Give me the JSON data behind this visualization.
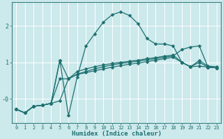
{
  "xlabel": "Humidex (Indice chaleur)",
  "bg_color": "#cce9ec",
  "grid_color": "#ffffff",
  "line_color": "#1e7070",
  "xlim": [
    -0.5,
    23.5
  ],
  "ylim": [
    -0.65,
    2.65
  ],
  "xticks": [
    0,
    1,
    2,
    3,
    4,
    5,
    6,
    7,
    8,
    9,
    10,
    11,
    12,
    13,
    14,
    15,
    16,
    17,
    18,
    19,
    20,
    21,
    22,
    23
  ],
  "yticks": [
    0.0,
    1.0,
    2.0
  ],
  "ytick_labels": [
    "-0",
    "1",
    "2"
  ],
  "line1_x": [
    0,
    1,
    2,
    3,
    4,
    5,
    6,
    7,
    8,
    9,
    10,
    11,
    12,
    13,
    14,
    15,
    16,
    17,
    18,
    19,
    20,
    21,
    22,
    23
  ],
  "line1_y": [
    -0.28,
    -0.38,
    -0.2,
    -0.17,
    -0.12,
    1.05,
    -0.45,
    0.6,
    1.45,
    1.78,
    2.1,
    2.3,
    2.38,
    2.28,
    2.05,
    1.65,
    1.5,
    1.5,
    1.45,
    1.0,
    0.88,
    1.05,
    0.9,
    0.88
  ],
  "line2_x": [
    0,
    1,
    2,
    3,
    4,
    5,
    6,
    7,
    8,
    9,
    10,
    11,
    12,
    13,
    14,
    15,
    16,
    17,
    18,
    19,
    20,
    21,
    22,
    23
  ],
  "line2_y": [
    -0.28,
    -0.38,
    -0.2,
    -0.17,
    -0.12,
    0.55,
    0.55,
    0.67,
    0.72,
    0.77,
    0.82,
    0.87,
    0.91,
    0.95,
    0.98,
    1.02,
    1.06,
    1.1,
    1.14,
    1.0,
    0.88,
    0.9,
    0.87,
    0.85
  ],
  "line3_x": [
    0,
    1,
    2,
    3,
    4,
    5,
    6,
    7,
    8,
    9,
    10,
    11,
    12,
    13,
    14,
    15,
    16,
    17,
    18,
    19,
    20,
    21,
    22,
    23
  ],
  "line3_y": [
    -0.28,
    -0.38,
    -0.2,
    -0.17,
    -0.12,
    1.05,
    0.55,
    0.75,
    0.82,
    0.88,
    0.93,
    0.97,
    1.0,
    1.03,
    1.06,
    1.1,
    1.13,
    1.17,
    1.2,
    1.0,
    0.88,
    1.0,
    0.87,
    0.85
  ],
  "line4_x": [
    0,
    1,
    2,
    3,
    4,
    5,
    6,
    7,
    8,
    9,
    10,
    11,
    12,
    13,
    14,
    15,
    16,
    17,
    18,
    19,
    20,
    21,
    22,
    23
  ],
  "line4_y": [
    -0.28,
    -0.38,
    -0.2,
    -0.17,
    -0.12,
    -0.05,
    0.55,
    0.68,
    0.75,
    0.82,
    0.88,
    0.93,
    0.97,
    1.0,
    1.03,
    1.07,
    1.1,
    1.14,
    1.17,
    1.35,
    1.42,
    1.45,
    0.87,
    0.85
  ]
}
